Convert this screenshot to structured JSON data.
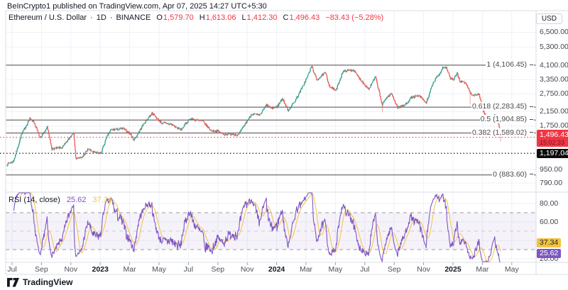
{
  "attribution": "BeInCrypto1 published on TradingView.com, Apr 07, 2025 14:27 UTC+5:30",
  "symbol_bar": {
    "title": "Ethereum / U.S. Dollar",
    "sep": "·",
    "interval": "1D",
    "exchange": "BINANCE",
    "ohlc": [
      {
        "label": "O",
        "value": "1,579.70"
      },
      {
        "label": "H",
        "value": "1,613.06"
      },
      {
        "label": "L",
        "value": "1,412.30"
      },
      {
        "label": "C",
        "value": "1,496.43"
      }
    ],
    "change": "−83.43 (−5.28%)"
  },
  "price_axis": {
    "unit": "USD",
    "ticks": [
      {
        "label": "6,500.00",
        "value": 6500
      },
      {
        "label": "5,300.00",
        "value": 5300
      },
      {
        "label": "4,100.00",
        "value": 4100
      },
      {
        "label": "3,350.00",
        "value": 3350
      },
      {
        "label": "2,750.00",
        "value": 2750
      },
      {
        "label": "2,150.00",
        "value": 2150
      },
      {
        "label": "1,750.00",
        "value": 1750
      },
      {
        "label": "950.00",
        "value": 950
      },
      {
        "label": "790.00",
        "value": 790
      }
    ],
    "current_badge": {
      "price": "1,496.43",
      "time": "15:02:33",
      "value": 1496.43
    },
    "black_badge": {
      "price": "1,197.04",
      "value": 1197.04
    }
  },
  "fib": {
    "levels": [
      {
        "display": "1 (4,106.45)",
        "value": 4106.45
      },
      {
        "display": "0.618 (2,283.45)",
        "value": 2283.45
      },
      {
        "display": "0.5 (1,904.85)",
        "value": 1904.85
      },
      {
        "display": "0.382 (1,589.02)",
        "value": 1589.02
      },
      {
        "display": "0 (883.60)",
        "value": 883.6
      }
    ]
  },
  "rsi_pane": {
    "title": "RSI",
    "params": "(14, close)",
    "value_main": "25.62",
    "value_ma": "37.34",
    "axis_ticks": [
      {
        "label": "80.00",
        "value": 80
      },
      {
        "label": "60.00",
        "value": 60
      },
      {
        "label": "20.00",
        "value": 20
      }
    ],
    "bands": {
      "overbought": 70,
      "middle": 50,
      "oversold": 30
    }
  },
  "time_axis": {
    "labels": [
      {
        "text": "Jul",
        "m": 0,
        "bold": false
      },
      {
        "text": "Sep",
        "m": 2,
        "bold": false
      },
      {
        "text": "Nov",
        "m": 4,
        "bold": false
      },
      {
        "text": "2023",
        "m": 6,
        "bold": true
      },
      {
        "text": "Mar",
        "m": 8,
        "bold": false
      },
      {
        "text": "May",
        "m": 10,
        "bold": false
      },
      {
        "text": "Jul",
        "m": 12,
        "bold": false
      },
      {
        "text": "Sep",
        "m": 14,
        "bold": false
      },
      {
        "text": "Nov",
        "m": 16,
        "bold": false
      },
      {
        "text": "2024",
        "m": 18,
        "bold": true
      },
      {
        "text": "Mar",
        "m": 20,
        "bold": false
      },
      {
        "text": "May",
        "m": 22,
        "bold": false
      },
      {
        "text": "Jul",
        "m": 24,
        "bold": false
      },
      {
        "text": "Sep",
        "m": 26,
        "bold": false
      },
      {
        "text": "Nov",
        "m": 28,
        "bold": false
      },
      {
        "text": "2025",
        "m": 30,
        "bold": true
      },
      {
        "text": "Mar",
        "m": 32,
        "bold": false
      },
      {
        "text": "May",
        "m": 34,
        "bold": false
      }
    ]
  },
  "logo": {
    "text": "TradingView"
  },
  "colors": {
    "up": "#1ea08c",
    "down": "#ef5350",
    "accent_red": "#f23645",
    "fib_line": "#4a4a4a",
    "purple": "#7e57c2",
    "yellow": "#f2c341",
    "grid": "#eef1f6",
    "frame": "#d9dce3",
    "band_fill": "rgba(126,87,194,0.08)"
  },
  "chart_data": {
    "type": "candlestick",
    "title": "Ethereum / U.S. Dollar",
    "exchange": "BINANCE",
    "interval": "1D",
    "price_scale": "log",
    "x_axis": {
      "start_date": "2022-06-20",
      "end_date": "2025-04-07",
      "unit": "day"
    },
    "y_axis": {
      "unit": "USD",
      "visible_range": [
        650,
        7200
      ]
    },
    "last_candle": {
      "open": 1579.7,
      "high": 1613.06,
      "low": 1412.3,
      "close": 1496.43
    },
    "anchors": [
      [
        0,
        1030
      ],
      [
        13,
        1065
      ],
      [
        30,
        1560
      ],
      [
        47,
        1940
      ],
      [
        55,
        1870
      ],
      [
        69,
        1470
      ],
      [
        83,
        1720
      ],
      [
        93,
        1270
      ],
      [
        115,
        1300
      ],
      [
        138,
        1610
      ],
      [
        142,
        1120
      ],
      [
        154,
        1120
      ],
      [
        168,
        1270
      ],
      [
        180,
        1210
      ],
      [
        194,
        1196
      ],
      [
        208,
        1540
      ],
      [
        215,
        1660
      ],
      [
        241,
        1690
      ],
      [
        255,
        1570
      ],
      [
        263,
        1440
      ],
      [
        282,
        1790
      ],
      [
        300,
        2100
      ],
      [
        320,
        1830
      ],
      [
        339,
        1800
      ],
      [
        360,
        1660
      ],
      [
        378,
        1940
      ],
      [
        405,
        1870
      ],
      [
        423,
        1640
      ],
      [
        436,
        1630
      ],
      [
        448,
        1560
      ],
      [
        466,
        1570
      ],
      [
        479,
        1545
      ],
      [
        495,
        1840
      ],
      [
        507,
        2080
      ],
      [
        523,
        2030
      ],
      [
        537,
        2350
      ],
      [
        547,
        2250
      ],
      [
        559,
        2290
      ],
      [
        570,
        2580
      ],
      [
        582,
        2180
      ],
      [
        596,
        2480
      ],
      [
        610,
        2950
      ],
      [
        622,
        3500
      ],
      [
        631,
        4060
      ],
      [
        641,
        3340
      ],
      [
        652,
        3550
      ],
      [
        659,
        3690
      ],
      [
        668,
        3050
      ],
      [
        681,
        2870
      ],
      [
        695,
        3740
      ],
      [
        703,
        3800
      ],
      [
        717,
        3840
      ],
      [
        731,
        3380
      ],
      [
        749,
        2940
      ],
      [
        763,
        3480
      ],
      [
        777,
        2340
      ],
      [
        784,
        2580
      ],
      [
        796,
        2760
      ],
      [
        809,
        2270
      ],
      [
        823,
        2340
      ],
      [
        838,
        2620
      ],
      [
        854,
        2670
      ],
      [
        868,
        2420
      ],
      [
        880,
        3060
      ],
      [
        887,
        3380
      ],
      [
        897,
        3680
      ],
      [
        902,
        3990
      ],
      [
        910,
        3960
      ],
      [
        918,
        3420
      ],
      [
        925,
        3340
      ],
      [
        932,
        3680
      ],
      [
        938,
        3280
      ],
      [
        945,
        3250
      ],
      [
        952,
        3120
      ],
      [
        959,
        2790
      ],
      [
        966,
        2680
      ],
      [
        977,
        2750
      ],
      [
        983,
        2340
      ],
      [
        987,
        2140
      ],
      [
        995,
        1890
      ],
      [
        1002,
        1940
      ],
      [
        1009,
        2060
      ],
      [
        1014,
        1900
      ],
      [
        1018,
        1810
      ],
      [
        1021,
        1585
      ],
      [
        1022,
        1496.43
      ]
    ],
    "wick_overrides": [
      {
        "d": 631,
        "high": 4093
      },
      {
        "d": 910,
        "high": 4106
      },
      {
        "d": 777,
        "low": 2120
      },
      {
        "d": 959,
        "low": 2368
      },
      {
        "d": 1022,
        "low": 1412.3
      }
    ],
    "fib_retracement": {
      "high": 4106.45,
      "low": 883.6,
      "levels": [
        1,
        0.618,
        0.5,
        0.382,
        0
      ]
    },
    "price_lines": [
      {
        "value": 1496.43,
        "style": "dotted",
        "color": "#f23645"
      },
      {
        "value": 1197.04,
        "style": "dotted",
        "color": "#000000"
      }
    ],
    "indicator": {
      "name": "RSI",
      "period": 14,
      "source": "close",
      "last_value": 25.62,
      "ma_last_value": 37.34,
      "overbought": 70,
      "oversold": 30
    }
  }
}
